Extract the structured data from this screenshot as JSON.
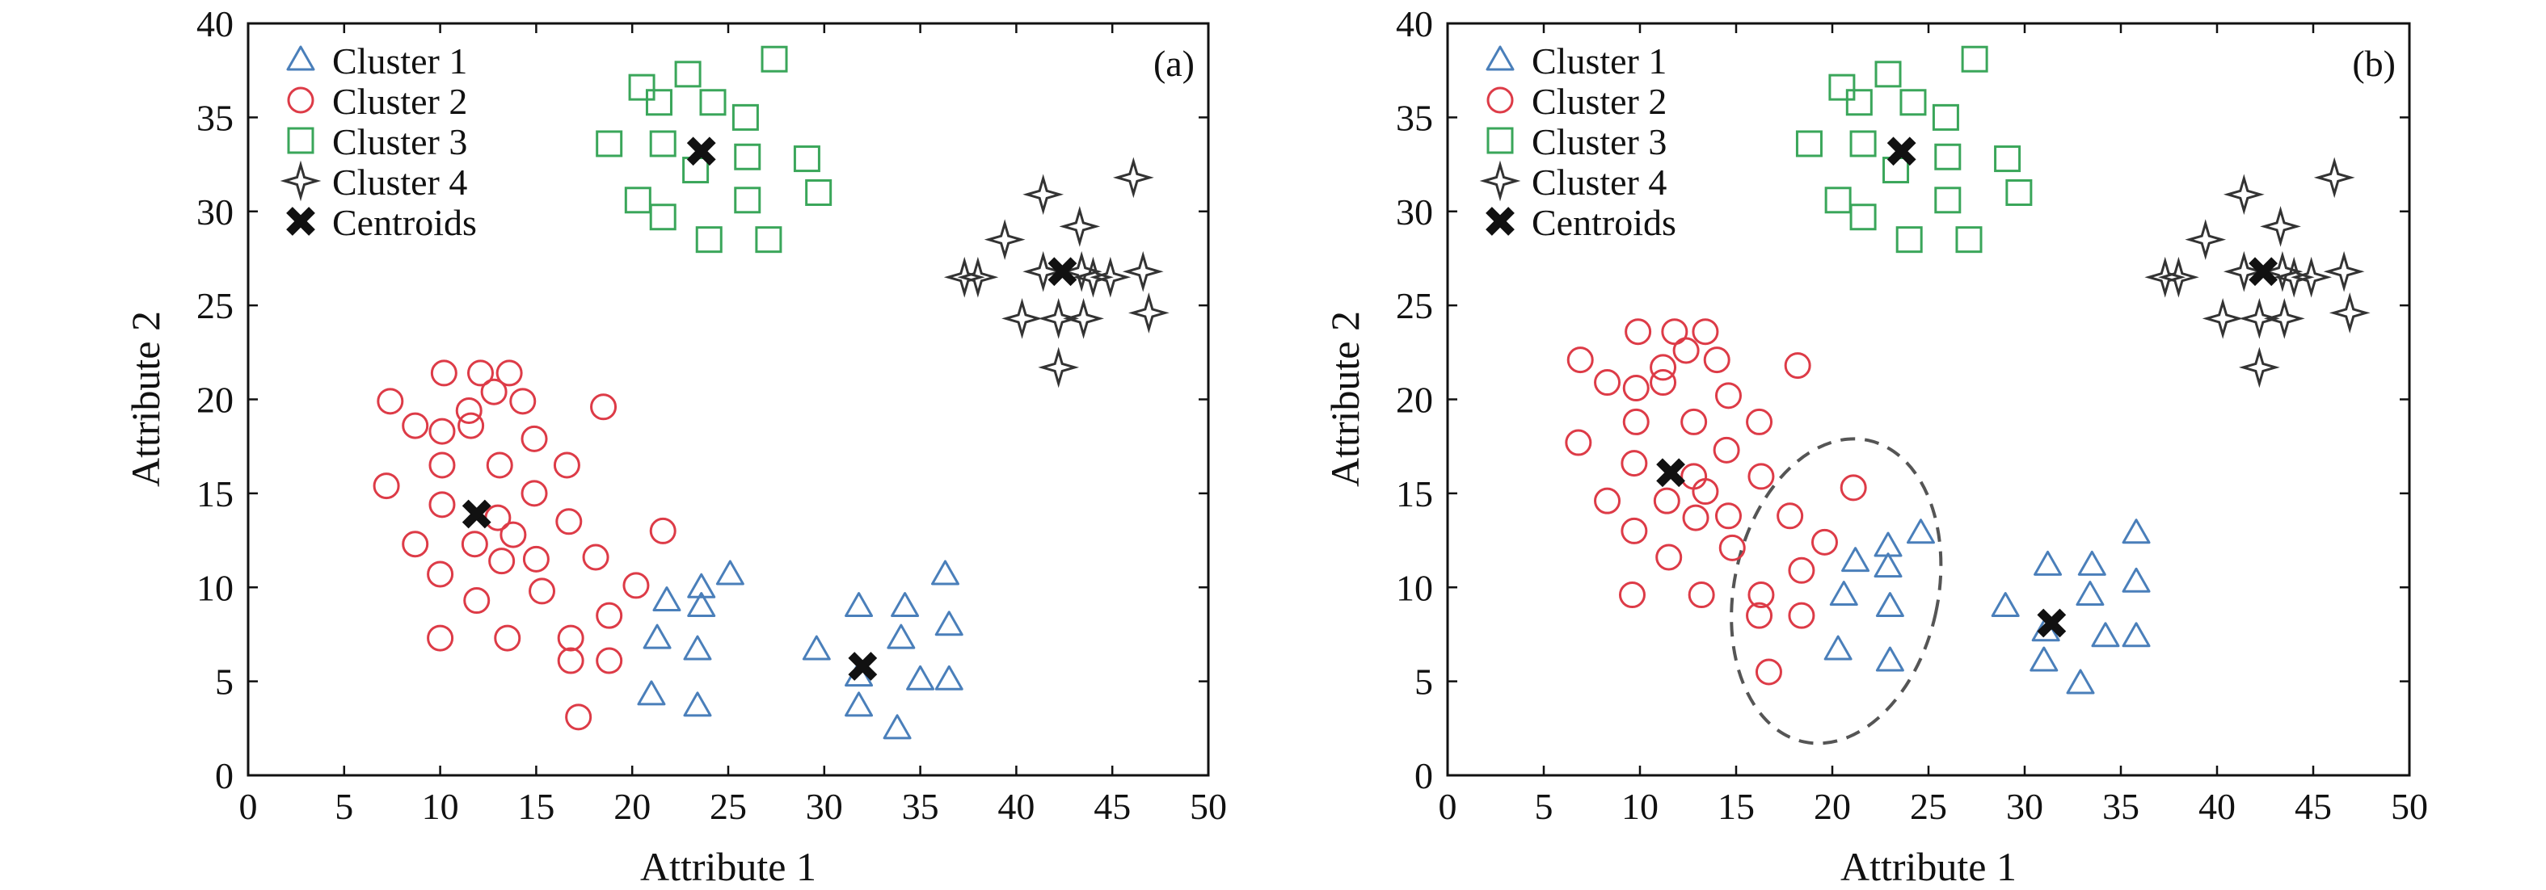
{
  "colors": {
    "cluster1": "#4a7fba",
    "cluster2": "#dd3b47",
    "cluster3": "#3aa65a",
    "cluster4": "#333333",
    "centroid": "#111111",
    "ellipse": "#555555"
  },
  "chart_data": [
    {
      "type": "scatter",
      "panel_label": "(a)",
      "xlabel": "Attribute 1",
      "ylabel": "Attribute 2",
      "xlim": [
        0,
        50
      ],
      "ylim": [
        0,
        40
      ],
      "xticks": [
        0,
        5,
        10,
        15,
        20,
        25,
        30,
        35,
        40,
        45,
        50
      ],
      "yticks": [
        0,
        5,
        10,
        15,
        20,
        25,
        30,
        35,
        40
      ],
      "legend_position": "top-left",
      "series": [
        {
          "name": "Cluster 1",
          "marker": "triangle",
          "color": "#4a7fba",
          "points": [
            [
              21.0,
              4.3
            ],
            [
              21.3,
              7.3
            ],
            [
              21.8,
              9.3
            ],
            [
              23.4,
              3.7
            ],
            [
              23.4,
              6.7
            ],
            [
              23.6,
              9.0
            ],
            [
              23.6,
              10.0
            ],
            [
              25.1,
              10.7
            ],
            [
              29.6,
              6.7
            ],
            [
              31.8,
              3.7
            ],
            [
              31.8,
              5.3
            ],
            [
              31.8,
              9.0
            ],
            [
              33.8,
              2.5
            ],
            [
              34.0,
              7.3
            ],
            [
              34.2,
              9.0
            ],
            [
              35.0,
              5.1
            ],
            [
              36.3,
              10.7
            ],
            [
              36.5,
              8.0
            ],
            [
              36.5,
              5.1
            ]
          ]
        },
        {
          "name": "Cluster 2",
          "marker": "circle",
          "color": "#dd3b47",
          "points": [
            [
              7.2,
              15.4
            ],
            [
              7.4,
              19.9
            ],
            [
              8.7,
              18.6
            ],
            [
              8.7,
              12.3
            ],
            [
              10.0,
              7.3
            ],
            [
              10.0,
              10.7
            ],
            [
              10.1,
              14.4
            ],
            [
              10.1,
              16.5
            ],
            [
              10.1,
              18.3
            ],
            [
              10.2,
              21.4
            ],
            [
              11.5,
              19.4
            ],
            [
              11.6,
              18.6
            ],
            [
              11.8,
              12.3
            ],
            [
              11.9,
              9.3
            ],
            [
              12.1,
              21.4
            ],
            [
              12.8,
              20.4
            ],
            [
              13.0,
              13.7
            ],
            [
              13.1,
              16.5
            ],
            [
              13.2,
              11.4
            ],
            [
              13.5,
              7.3
            ],
            [
              13.6,
              21.4
            ],
            [
              13.8,
              12.8
            ],
            [
              14.3,
              19.9
            ],
            [
              14.9,
              15.0
            ],
            [
              14.9,
              17.9
            ],
            [
              15.0,
              11.5
            ],
            [
              15.3,
              9.8
            ],
            [
              16.6,
              16.5
            ],
            [
              16.7,
              13.5
            ],
            [
              16.8,
              7.3
            ],
            [
              16.8,
              6.1
            ],
            [
              17.2,
              3.1
            ],
            [
              18.1,
              11.6
            ],
            [
              18.5,
              19.6
            ],
            [
              18.8,
              8.5
            ],
            [
              18.8,
              6.1
            ],
            [
              20.2,
              10.1
            ],
            [
              21.6,
              13.0
            ]
          ]
        },
        {
          "name": "Cluster 3",
          "marker": "square",
          "color": "#3aa65a",
          "points": [
            [
              18.8,
              33.6
            ],
            [
              20.3,
              30.6
            ],
            [
              20.5,
              36.6
            ],
            [
              21.4,
              35.8
            ],
            [
              21.6,
              33.6
            ],
            [
              21.6,
              29.7
            ],
            [
              22.9,
              37.3
            ],
            [
              23.3,
              32.2
            ],
            [
              24.2,
              35.8
            ],
            [
              25.9,
              35.0
            ],
            [
              26.0,
              30.6
            ],
            [
              26.0,
              32.9
            ],
            [
              24.0,
              28.5
            ],
            [
              27.1,
              28.5
            ],
            [
              27.4,
              38.1
            ],
            [
              29.1,
              32.8
            ],
            [
              29.7,
              31.0
            ]
          ]
        },
        {
          "name": "Cluster 4",
          "marker": "star4",
          "color": "#333333",
          "points": [
            [
              37.3,
              26.5
            ],
            [
              38.0,
              26.5
            ],
            [
              39.4,
              28.5
            ],
            [
              40.3,
              24.3
            ],
            [
              41.4,
              30.9
            ],
            [
              41.4,
              26.8
            ],
            [
              42.2,
              24.3
            ],
            [
              42.2,
              21.7
            ],
            [
              43.3,
              29.2
            ],
            [
              43.4,
              26.8
            ],
            [
              43.5,
              24.3
            ],
            [
              44.0,
              26.5
            ],
            [
              44.9,
              26.5
            ],
            [
              46.1,
              31.8
            ],
            [
              46.6,
              26.8
            ],
            [
              46.9,
              24.6
            ]
          ]
        }
      ],
      "centroids": {
        "name": "Centroids",
        "marker": "x",
        "color": "#111111",
        "points": [
          [
            11.9,
            13.9
          ],
          [
            23.6,
            33.2
          ],
          [
            32.0,
            5.8
          ],
          [
            42.4,
            26.8
          ]
        ]
      }
    },
    {
      "type": "scatter",
      "panel_label": "(b)",
      "xlabel": "Attribute 1",
      "ylabel": "Attribute 2",
      "xlim": [
        0,
        50
      ],
      "ylim": [
        0,
        40
      ],
      "xticks": [
        0,
        5,
        10,
        15,
        20,
        25,
        30,
        35,
        40,
        45,
        50
      ],
      "yticks": [
        0,
        5,
        10,
        15,
        20,
        25,
        30,
        35,
        40
      ],
      "legend_position": "top-left",
      "series": [
        {
          "name": "Cluster 1",
          "marker": "triangle",
          "color": "#4a7fba",
          "points": [
            [
              20.3,
              6.7
            ],
            [
              20.6,
              9.6
            ],
            [
              21.2,
              11.4
            ],
            [
              22.9,
              12.2
            ],
            [
              22.9,
              11.1
            ],
            [
              23.0,
              9.0
            ],
            [
              23.0,
              6.1
            ],
            [
              24.6,
              12.9
            ],
            [
              29.0,
              9.0
            ],
            [
              31.0,
              6.1
            ],
            [
              31.2,
              11.2
            ],
            [
              31.1,
              7.7
            ],
            [
              32.9,
              4.9
            ],
            [
              33.4,
              9.6
            ],
            [
              33.5,
              11.2
            ],
            [
              34.2,
              7.4
            ],
            [
              35.8,
              12.9
            ],
            [
              35.8,
              10.3
            ],
            [
              35.8,
              7.4
            ]
          ]
        },
        {
          "name": "Cluster 2",
          "marker": "circle",
          "color": "#dd3b47",
          "points": [
            [
              6.8,
              17.7
            ],
            [
              6.9,
              22.1
            ],
            [
              8.3,
              20.9
            ],
            [
              8.3,
              14.6
            ],
            [
              9.6,
              9.6
            ],
            [
              9.7,
              13.0
            ],
            [
              9.7,
              16.6
            ],
            [
              9.8,
              18.8
            ],
            [
              9.8,
              20.6
            ],
            [
              9.9,
              23.6
            ],
            [
              11.2,
              21.7
            ],
            [
              11.2,
              20.9
            ],
            [
              11.4,
              14.6
            ],
            [
              11.5,
              11.6
            ],
            [
              11.8,
              23.6
            ],
            [
              12.4,
              22.6
            ],
            [
              12.8,
              15.9
            ],
            [
              12.8,
              18.8
            ],
            [
              12.9,
              13.7
            ],
            [
              13.2,
              9.6
            ],
            [
              13.4,
              23.6
            ],
            [
              13.4,
              15.1
            ],
            [
              14.0,
              22.1
            ],
            [
              14.5,
              17.3
            ],
            [
              14.6,
              20.2
            ],
            [
              14.6,
              13.8
            ],
            [
              14.8,
              12.1
            ],
            [
              16.2,
              18.8
            ],
            [
              16.3,
              15.9
            ],
            [
              16.3,
              9.6
            ],
            [
              16.2,
              8.5
            ],
            [
              16.7,
              5.5
            ],
            [
              17.8,
              13.8
            ],
            [
              18.2,
              21.8
            ],
            [
              18.4,
              10.9
            ],
            [
              18.4,
              8.5
            ],
            [
              19.6,
              12.4
            ],
            [
              21.1,
              15.3
            ]
          ]
        },
        {
          "name": "Cluster 3",
          "marker": "square",
          "color": "#3aa65a",
          "points": [
            [
              18.8,
              33.6
            ],
            [
              20.3,
              30.6
            ],
            [
              20.5,
              36.6
            ],
            [
              21.4,
              35.8
            ],
            [
              21.6,
              33.6
            ],
            [
              21.6,
              29.7
            ],
            [
              22.9,
              37.3
            ],
            [
              23.3,
              32.2
            ],
            [
              24.2,
              35.8
            ],
            [
              25.9,
              35.0
            ],
            [
              26.0,
              30.6
            ],
            [
              26.0,
              32.9
            ],
            [
              24.0,
              28.5
            ],
            [
              27.1,
              28.5
            ],
            [
              27.4,
              38.1
            ],
            [
              29.1,
              32.8
            ],
            [
              29.7,
              31.0
            ]
          ]
        },
        {
          "name": "Cluster 4",
          "marker": "star4",
          "color": "#333333",
          "points": [
            [
              37.3,
              26.5
            ],
            [
              38.0,
              26.5
            ],
            [
              39.4,
              28.5
            ],
            [
              40.3,
              24.3
            ],
            [
              41.4,
              30.9
            ],
            [
              41.4,
              26.8
            ],
            [
              42.2,
              24.3
            ],
            [
              42.2,
              21.7
            ],
            [
              43.3,
              29.2
            ],
            [
              43.4,
              26.8
            ],
            [
              43.5,
              24.3
            ],
            [
              44.0,
              26.5
            ],
            [
              44.9,
              26.5
            ],
            [
              46.1,
              31.8
            ],
            [
              46.6,
              26.8
            ],
            [
              46.9,
              24.6
            ]
          ]
        }
      ],
      "centroids": {
        "name": "Centroids",
        "marker": "x",
        "color": "#111111",
        "points": [
          [
            11.6,
            16.1
          ],
          [
            23.6,
            33.2
          ],
          [
            31.4,
            8.1
          ],
          [
            42.4,
            26.8
          ]
        ]
      },
      "annotations": [
        {
          "type": "dashed-ellipse",
          "center": [
            20.2,
            9.8
          ],
          "semi_axes": [
            5.3,
            8.2
          ],
          "rotation_deg": 12
        }
      ]
    }
  ]
}
